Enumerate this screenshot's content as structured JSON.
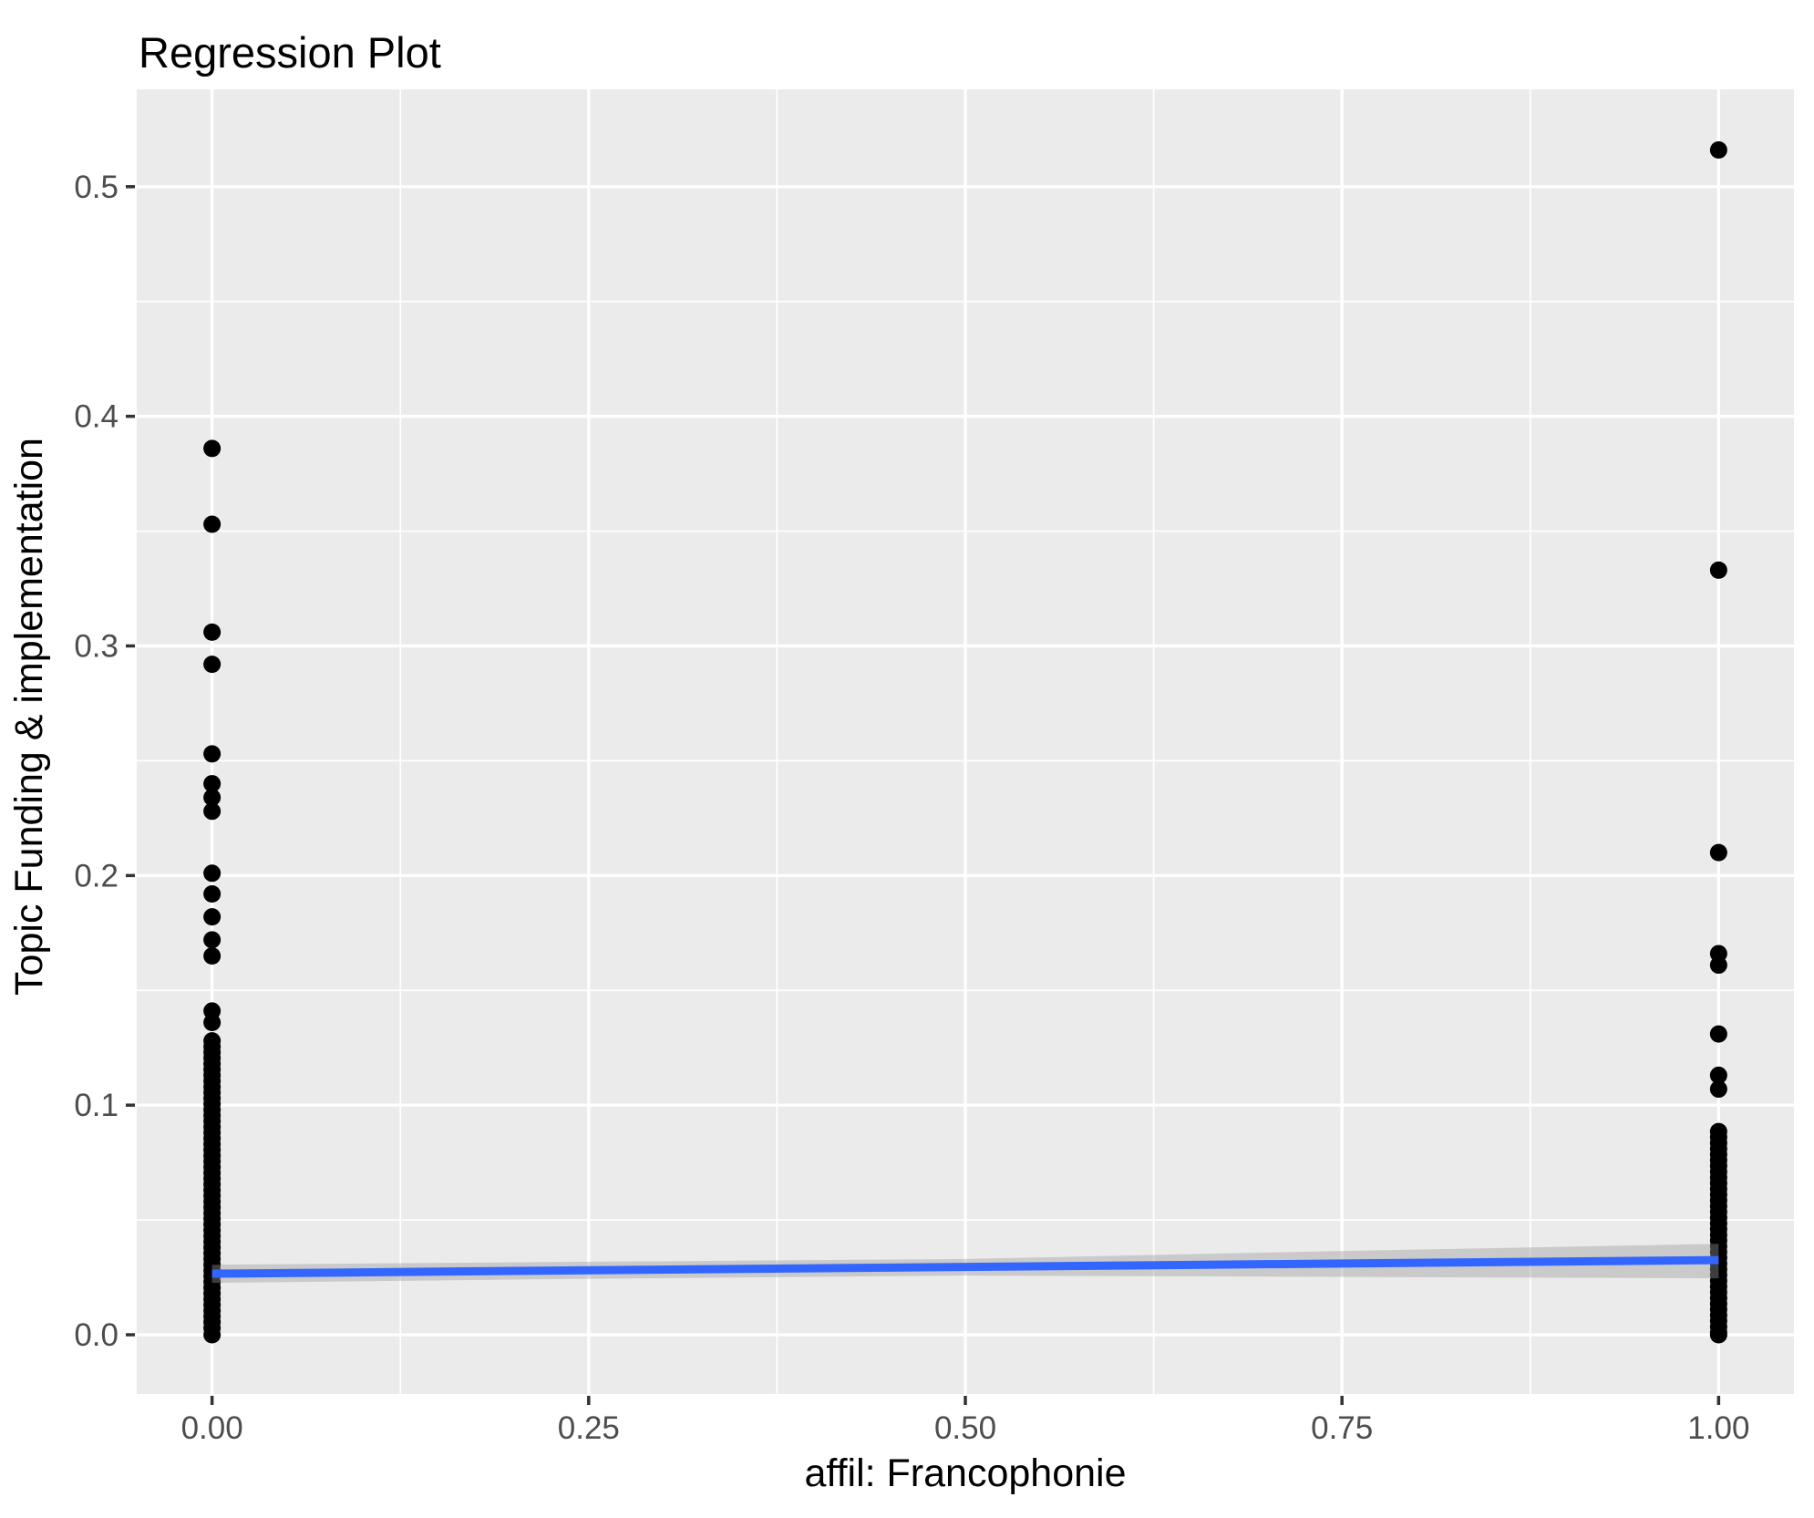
{
  "title": "Regression Plot",
  "chart_data": {
    "type": "scatter",
    "title": "Regression Plot",
    "xlabel": "affil: Francophonie",
    "ylabel": "Topic Funding & implementation",
    "xlim": [
      -0.05,
      1.05
    ],
    "ylim": [
      -0.0258,
      0.5424
    ],
    "x_ticks": [
      0,
      0.25,
      0.5,
      0.75,
      1
    ],
    "x_tick_labels": [
      "0.00",
      "0.25",
      "0.50",
      "0.75",
      "1.00"
    ],
    "y_ticks": [
      0,
      0.1,
      0.2,
      0.3,
      0.4,
      0.5
    ],
    "y_tick_labels": [
      "0.0",
      "0.1",
      "0.2",
      "0.3",
      "0.4",
      "0.5"
    ],
    "x_minor_breaks": [
      0.125,
      0.375,
      0.625,
      0.875
    ],
    "y_minor_breaks": [
      0.05,
      0.15,
      0.25,
      0.35,
      0.45
    ],
    "grid": "on",
    "legend": "none",
    "panel_bg": "#EBEBEB",
    "grid_color": "#FFFFFF",
    "point_color": "#000000",
    "point_radius": 9.5,
    "tick_color": "#333333",
    "axis_text_color": "#4D4D4D",
    "series": [
      {
        "name": "affil = 0",
        "x": 0,
        "values": [
          0.386,
          0.353,
          0.306,
          0.292,
          0.253,
          0.24,
          0.234,
          0.228,
          0.201,
          0.192,
          0.182,
          0.172,
          0.165,
          0.141,
          0.136,
          0.128,
          0.1255,
          0.123,
          0.1205,
          0.118,
          0.1155,
          0.113,
          0.1105,
          0.108,
          0.1055,
          0.103,
          0.1005,
          0.098,
          0.0955,
          0.093,
          0.0905,
          0.088,
          0.0855,
          0.083,
          0.0805,
          0.078,
          0.0755,
          0.073,
          0.0705,
          0.068,
          0.0655,
          0.063,
          0.0605,
          0.058,
          0.0555,
          0.053,
          0.0505,
          0.048,
          0.0455,
          0.043,
          0.0405,
          0.038,
          0.0355,
          0.033,
          0.0305,
          0.028,
          0.0255,
          0.023,
          0.0205,
          0.018,
          0.0155,
          0.013,
          0.0105,
          0.008,
          0.0055,
          0.003,
          0.0
        ]
      },
      {
        "name": "affil = 1",
        "x": 1,
        "values": [
          0.516,
          0.333,
          0.21,
          0.166,
          0.161,
          0.131,
          0.113,
          0.107,
          0.0885,
          0.086,
          0.0835,
          0.081,
          0.0785,
          0.076,
          0.0735,
          0.071,
          0.0685,
          0.066,
          0.0635,
          0.061,
          0.0585,
          0.056,
          0.0535,
          0.051,
          0.0485,
          0.046,
          0.0435,
          0.041,
          0.0385,
          0.036,
          0.0335,
          0.031,
          0.0285,
          0.026,
          0.0235,
          0.021,
          0.0185,
          0.016,
          0.0135,
          0.011,
          0.0085,
          0.006,
          0.0035,
          0.001,
          0.0
        ]
      }
    ],
    "regression_line": {
      "color": "#3366FF",
      "width": 9,
      "x": [
        0,
        1
      ],
      "y": [
        0.0266,
        0.0325
      ]
    },
    "confidence_band": {
      "fill": "#999999",
      "opacity": 0.4,
      "x": [
        0,
        0.25,
        0.5,
        0.75,
        1
      ],
      "upper": [
        0.0305,
        0.0318,
        0.033,
        0.0365,
        0.0396
      ],
      "lower": [
        0.0226,
        0.0244,
        0.0258,
        0.0252,
        0.0246
      ]
    }
  }
}
